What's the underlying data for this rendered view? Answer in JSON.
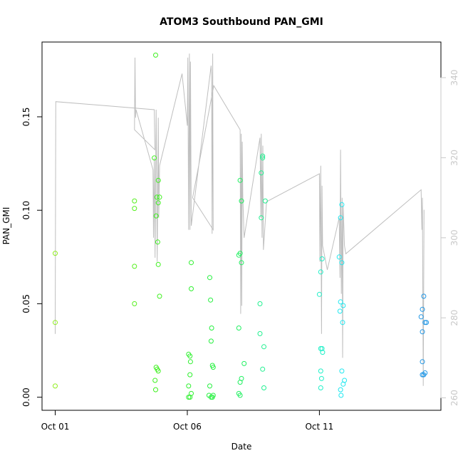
{
  "chart_data": {
    "type": "scatter",
    "title": "ATOM3 Southbound PAN_GMI",
    "xlabel": "Date",
    "ylabel": "PAN_GMI",
    "x_ticks": [
      {
        "label": "Oct 01",
        "value": 1
      },
      {
        "label": "Oct 06",
        "value": 6
      },
      {
        "label": "Oct 11",
        "value": 11
      }
    ],
    "y_ticks": [
      "0.00",
      "0.05",
      "0.10",
      "0.15"
    ],
    "right_axis_ticks": [
      "260",
      "280",
      "300",
      "320",
      "340"
    ],
    "xlim": [
      0.5,
      15.6
    ],
    "ylim": [
      -0.007,
      0.19
    ],
    "right_ylim": [
      256.9,
      348.9
    ],
    "colors": {
      "gray_line": "#bebebe",
      "right_axis": "#c8c8c8"
    },
    "points": [
      {
        "x": 1.0,
        "y": 0.077,
        "color": "#90ee1e"
      },
      {
        "x": 1.0,
        "y": 0.04,
        "color": "#90ee1e"
      },
      {
        "x": 1.0,
        "y": 0.006,
        "color": "#90ee1e"
      },
      {
        "x": 4.0,
        "y": 0.105,
        "color": "#56f01e"
      },
      {
        "x": 4.0,
        "y": 0.101,
        "color": "#56f01e"
      },
      {
        "x": 4.0,
        "y": 0.07,
        "color": "#56f01e"
      },
      {
        "x": 4.0,
        "y": 0.05,
        "color": "#56f01e"
      },
      {
        "x": 4.8,
        "y": 0.183,
        "color": "#3ef01e"
      },
      {
        "x": 4.75,
        "y": 0.128,
        "color": "#3ef01e"
      },
      {
        "x": 4.9,
        "y": 0.116,
        "color": "#3ef01e"
      },
      {
        "x": 4.85,
        "y": 0.107,
        "color": "#3ef01e"
      },
      {
        "x": 4.95,
        "y": 0.107,
        "color": "#3ef01e"
      },
      {
        "x": 4.9,
        "y": 0.104,
        "color": "#3ef01e"
      },
      {
        "x": 4.82,
        "y": 0.097,
        "color": "#3ef01e"
      },
      {
        "x": 4.88,
        "y": 0.083,
        "color": "#3ef01e"
      },
      {
        "x": 4.9,
        "y": 0.071,
        "color": "#3ef01e"
      },
      {
        "x": 4.95,
        "y": 0.054,
        "color": "#3ef01e"
      },
      {
        "x": 4.82,
        "y": 0.016,
        "color": "#3ef01e"
      },
      {
        "x": 4.86,
        "y": 0.015,
        "color": "#3ef01e"
      },
      {
        "x": 4.9,
        "y": 0.014,
        "color": "#3ef01e"
      },
      {
        "x": 4.78,
        "y": 0.009,
        "color": "#3ef01e"
      },
      {
        "x": 4.8,
        "y": 0.004,
        "color": "#3ef01e"
      },
      {
        "x": 6.15,
        "y": 0.072,
        "color": "#2ef02e"
      },
      {
        "x": 6.15,
        "y": 0.058,
        "color": "#2ef02e"
      },
      {
        "x": 6.05,
        "y": 0.023,
        "color": "#2ef02e"
      },
      {
        "x": 6.1,
        "y": 0.022,
        "color": "#2ef02e"
      },
      {
        "x": 6.12,
        "y": 0.019,
        "color": "#2ef02e"
      },
      {
        "x": 6.1,
        "y": 0.012,
        "color": "#2ef02e"
      },
      {
        "x": 6.05,
        "y": 0.006,
        "color": "#2ef02e"
      },
      {
        "x": 6.15,
        "y": 0.002,
        "color": "#2ef02e"
      },
      {
        "x": 6.05,
        "y": 0.0,
        "color": "#2ef02e"
      },
      {
        "x": 6.1,
        "y": 0.0,
        "color": "#2ef02e"
      },
      {
        "x": 6.85,
        "y": 0.064,
        "color": "#24f03e"
      },
      {
        "x": 6.88,
        "y": 0.052,
        "color": "#24f03e"
      },
      {
        "x": 6.92,
        "y": 0.037,
        "color": "#24f03e"
      },
      {
        "x": 6.9,
        "y": 0.03,
        "color": "#24f03e"
      },
      {
        "x": 6.95,
        "y": 0.017,
        "color": "#24f03e"
      },
      {
        "x": 6.98,
        "y": 0.016,
        "color": "#24f03e"
      },
      {
        "x": 6.85,
        "y": 0.006,
        "color": "#24f03e"
      },
      {
        "x": 6.82,
        "y": 0.001,
        "color": "#24f03e"
      },
      {
        "x": 6.9,
        "y": 0.0,
        "color": "#24f03e"
      },
      {
        "x": 6.95,
        "y": 0.0,
        "color": "#24f03e"
      },
      {
        "x": 6.98,
        "y": 0.001,
        "color": "#24f03e"
      },
      {
        "x": 8.0,
        "y": 0.116,
        "color": "#20f060"
      },
      {
        "x": 8.05,
        "y": 0.105,
        "color": "#20f060"
      },
      {
        "x": 8.0,
        "y": 0.077,
        "color": "#20f060"
      },
      {
        "x": 7.95,
        "y": 0.076,
        "color": "#20f060"
      },
      {
        "x": 8.05,
        "y": 0.072,
        "color": "#20f060"
      },
      {
        "x": 7.95,
        "y": 0.037,
        "color": "#20f060"
      },
      {
        "x": 8.15,
        "y": 0.018,
        "color": "#20f060"
      },
      {
        "x": 8.05,
        "y": 0.01,
        "color": "#20f060"
      },
      {
        "x": 8.0,
        "y": 0.008,
        "color": "#20f060"
      },
      {
        "x": 7.95,
        "y": 0.002,
        "color": "#20f060"
      },
      {
        "x": 8.0,
        "y": 0.001,
        "color": "#20f060"
      },
      {
        "x": 8.85,
        "y": 0.129,
        "color": "#20f090"
      },
      {
        "x": 8.85,
        "y": 0.128,
        "color": "#20f090"
      },
      {
        "x": 8.8,
        "y": 0.12,
        "color": "#20f090"
      },
      {
        "x": 8.95,
        "y": 0.105,
        "color": "#20f090"
      },
      {
        "x": 8.8,
        "y": 0.096,
        "color": "#20f090"
      },
      {
        "x": 8.75,
        "y": 0.05,
        "color": "#20f090"
      },
      {
        "x": 8.75,
        "y": 0.034,
        "color": "#20f090"
      },
      {
        "x": 8.9,
        "y": 0.027,
        "color": "#20f090"
      },
      {
        "x": 8.85,
        "y": 0.015,
        "color": "#20f090"
      },
      {
        "x": 8.9,
        "y": 0.005,
        "color": "#20f090"
      },
      {
        "x": 11.1,
        "y": 0.074,
        "color": "#20f0c8"
      },
      {
        "x": 11.05,
        "y": 0.067,
        "color": "#20f0c8"
      },
      {
        "x": 11.0,
        "y": 0.055,
        "color": "#20f0c8"
      },
      {
        "x": 11.05,
        "y": 0.026,
        "color": "#20f0c8"
      },
      {
        "x": 11.1,
        "y": 0.026,
        "color": "#20f0c8"
      },
      {
        "x": 11.12,
        "y": 0.024,
        "color": "#20f0c8"
      },
      {
        "x": 11.05,
        "y": 0.014,
        "color": "#20f0c8"
      },
      {
        "x": 11.08,
        "y": 0.01,
        "color": "#20f0c8"
      },
      {
        "x": 11.05,
        "y": 0.005,
        "color": "#20f0c8"
      },
      {
        "x": 11.85,
        "y": 0.103,
        "color": "#20e8f0"
      },
      {
        "x": 11.8,
        "y": 0.096,
        "color": "#20e8f0"
      },
      {
        "x": 11.75,
        "y": 0.075,
        "color": "#20e8f0"
      },
      {
        "x": 11.85,
        "y": 0.072,
        "color": "#20e8f0"
      },
      {
        "x": 11.8,
        "y": 0.051,
        "color": "#20e8f0"
      },
      {
        "x": 11.9,
        "y": 0.049,
        "color": "#20e8f0"
      },
      {
        "x": 11.78,
        "y": 0.046,
        "color": "#20e8f0"
      },
      {
        "x": 11.88,
        "y": 0.04,
        "color": "#20e8f0"
      },
      {
        "x": 11.85,
        "y": 0.014,
        "color": "#20e8f0"
      },
      {
        "x": 11.95,
        "y": 0.009,
        "color": "#20e8f0"
      },
      {
        "x": 11.9,
        "y": 0.007,
        "color": "#20e8f0"
      },
      {
        "x": 11.8,
        "y": 0.004,
        "color": "#20e8f0"
      },
      {
        "x": 11.82,
        "y": 0.001,
        "color": "#20e8f0"
      },
      {
        "x": 14.95,
        "y": 0.054,
        "color": "#1e96e6"
      },
      {
        "x": 14.9,
        "y": 0.047,
        "color": "#1e96e6"
      },
      {
        "x": 14.85,
        "y": 0.043,
        "color": "#1e96e6"
      },
      {
        "x": 15.0,
        "y": 0.04,
        "color": "#1e96e6"
      },
      {
        "x": 15.05,
        "y": 0.04,
        "color": "#1e96e6"
      },
      {
        "x": 14.9,
        "y": 0.035,
        "color": "#1e96e6"
      },
      {
        "x": 14.9,
        "y": 0.019,
        "color": "#1e96e6"
      },
      {
        "x": 14.9,
        "y": 0.012,
        "color": "#1e96e6"
      },
      {
        "x": 14.95,
        "y": 0.012,
        "color": "#1e96e6"
      },
      {
        "x": 15.0,
        "y": 0.013,
        "color": "#1e96e6"
      }
    ],
    "secondary_line": {
      "axis": "right",
      "color": "#bebebe",
      "points": [
        [
          1.0,
          276
        ],
        [
          1.02,
          334
        ],
        [
          4.75,
          332
        ],
        [
          4.77,
          322
        ],
        [
          4.0,
          327
        ],
        [
          4.02,
          345
        ],
        [
          4.04,
          330
        ],
        [
          4.06,
          332
        ],
        [
          4.7,
          317
        ],
        [
          4.72,
          300
        ],
        [
          4.75,
          320
        ],
        [
          4.78,
          295
        ],
        [
          4.82,
          332
        ],
        [
          4.86,
          294
        ],
        [
          4.9,
          330
        ],
        [
          4.92,
          305
        ],
        [
          4.95,
          318
        ],
        [
          5.8,
          341
        ],
        [
          6.0,
          328
        ],
        [
          6.02,
          345
        ],
        [
          6.05,
          302
        ],
        [
          6.08,
          346
        ],
        [
          6.1,
          302
        ],
        [
          6.12,
          344
        ],
        [
          6.15,
          303
        ],
        [
          6.9,
          343
        ],
        [
          6.92,
          340
        ],
        [
          6.94,
          301
        ],
        [
          6.96,
          346
        ],
        [
          6.98,
          302
        ],
        [
          6.2,
          310
        ],
        [
          7.0,
          338
        ],
        [
          8.0,
          327
        ],
        [
          8.02,
          281
        ],
        [
          8.04,
          326
        ],
        [
          8.06,
          283
        ],
        [
          8.08,
          324
        ],
        [
          8.1,
          310
        ],
        [
          8.15,
          300
        ],
        [
          8.75,
          325
        ],
        [
          8.78,
          305
        ],
        [
          8.8,
          326
        ],
        [
          8.83,
          300
        ],
        [
          8.86,
          323
        ],
        [
          8.88,
          297
        ],
        [
          9.0,
          309
        ],
        [
          11.0,
          316
        ],
        [
          11.02,
          294
        ],
        [
          11.05,
          318
        ],
        [
          11.08,
          276
        ],
        [
          11.1,
          313
        ],
        [
          11.12,
          298
        ],
        [
          11.3,
          292
        ],
        [
          11.75,
          305
        ],
        [
          11.78,
          290
        ],
        [
          11.8,
          322
        ],
        [
          11.83,
          286
        ],
        [
          11.86,
          310
        ],
        [
          11.88,
          270
        ],
        [
          11.9,
          308
        ],
        [
          11.95,
          298
        ],
        [
          12.0,
          296
        ],
        [
          14.85,
          312
        ],
        [
          14.88,
          302
        ],
        [
          14.9,
          310
        ],
        [
          14.93,
          263
        ],
        [
          14.96,
          307
        ]
      ]
    }
  }
}
